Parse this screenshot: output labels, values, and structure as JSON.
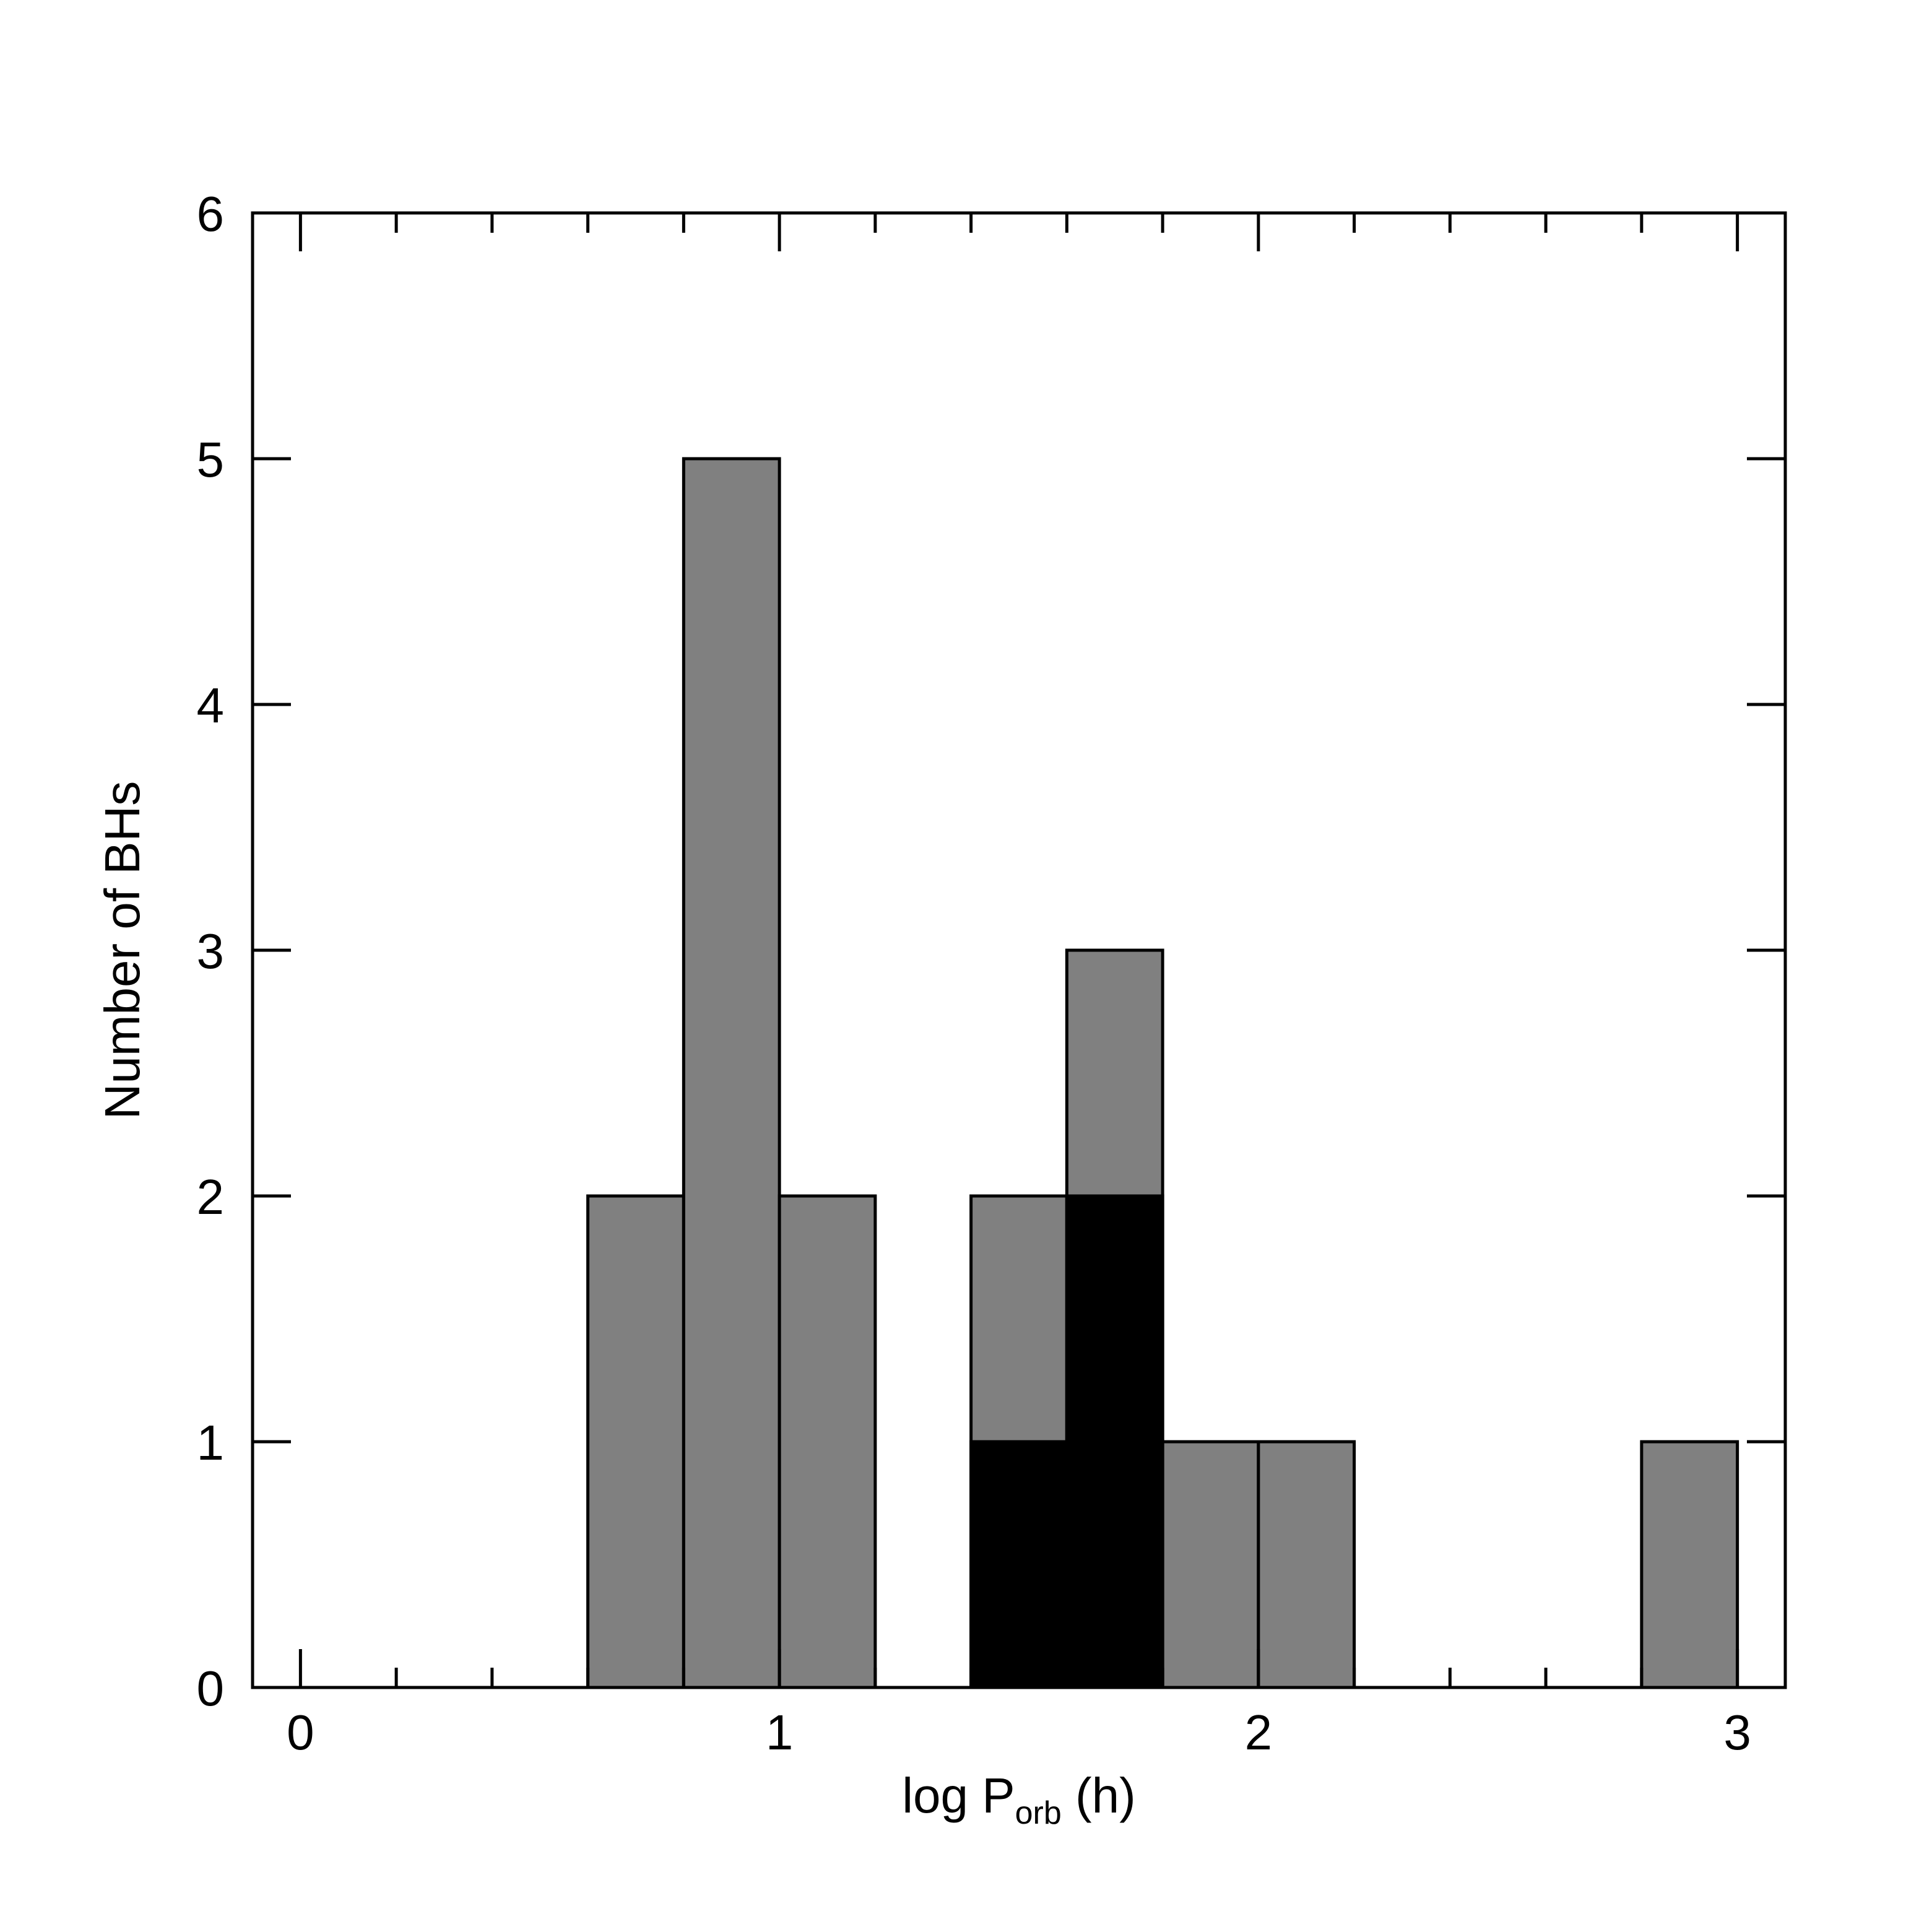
{
  "chart_data": {
    "type": "bar",
    "xlabel": "log P",
    "xlabel_subscript": "orb",
    "xlabel_suffix": " (h)",
    "ylabel": "Number of BHs",
    "xlim": [
      -0.1,
      3.1
    ],
    "ylim": [
      0,
      6
    ],
    "x_ticks": [
      0,
      1,
      2,
      3
    ],
    "x_tick_labels": [
      "0",
      "1",
      "2",
      "3"
    ],
    "x_minor_step": 0.2,
    "y_ticks": [
      0,
      1,
      2,
      3,
      4,
      5,
      6
    ],
    "y_tick_labels": [
      "0",
      "1",
      "2",
      "3",
      "4",
      "5",
      "6"
    ],
    "bin_width": 0.2,
    "bin_starts": [
      0.6,
      0.8,
      1.0,
      1.2,
      1.4,
      1.6,
      1.8,
      2.0,
      2.2,
      2.4,
      2.6,
      2.8
    ],
    "series": [
      {
        "values": [
          2,
          5,
          2,
          0,
          2,
          3,
          1,
          1,
          0,
          0,
          0,
          1
        ],
        "color": "#808080"
      },
      {
        "values": [
          0,
          0,
          0,
          0,
          1,
          2,
          0,
          0,
          0,
          0,
          0,
          0
        ],
        "color": "#000000"
      }
    ],
    "grid": false,
    "legend": "none"
  }
}
